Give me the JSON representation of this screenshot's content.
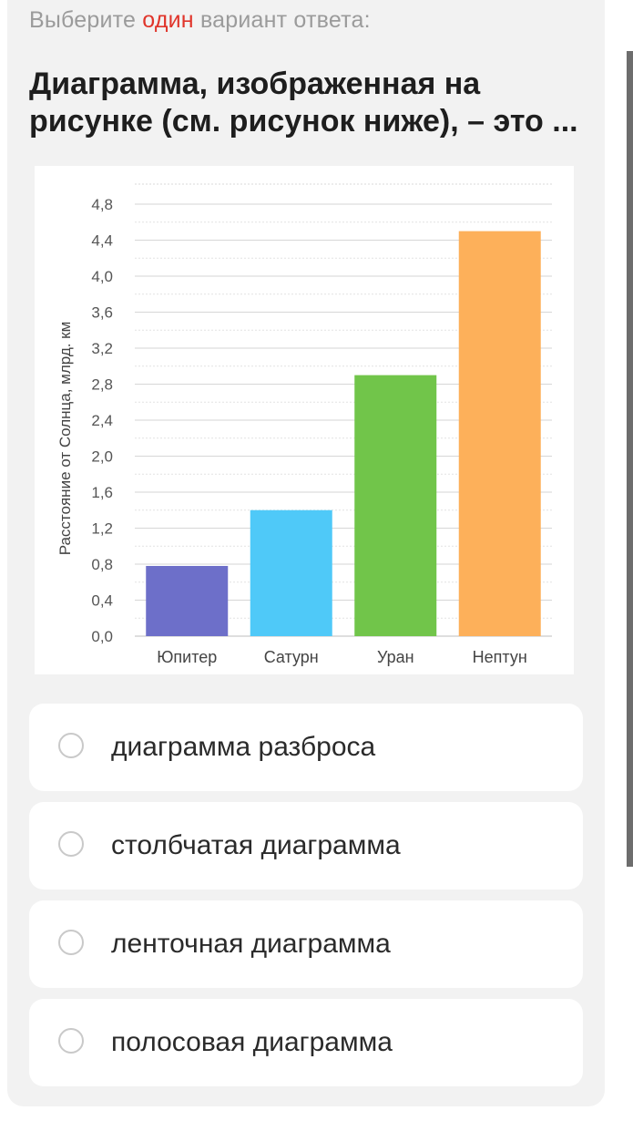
{
  "instruction": {
    "prefix": "Выберите ",
    "accent": "один",
    "suffix": " вариант ответа:"
  },
  "question": "Диаграмма, изображенная на рисунке (см. рисунок ниже), – это ...",
  "colors": {
    "accent": "#e0352b",
    "card_bg": "#f2f2f2"
  },
  "chart_data": {
    "type": "bar",
    "categories": [
      "Юпитер",
      "Сатурн",
      "Уран",
      "Нептун"
    ],
    "values": [
      0.78,
      1.4,
      2.9,
      4.5
    ],
    "colors": [
      "#6d6fc9",
      "#4fc9f8",
      "#71c54a",
      "#fdb05a"
    ],
    "ylabel": "Расстояние от Солнца, млрд. км",
    "ylim": [
      0,
      4.8
    ],
    "yticks": [
      "0,0",
      "0,4",
      "0,8",
      "1,2",
      "1,6",
      "2,0",
      "2,4",
      "2,8",
      "3,2",
      "3,6",
      "4,0",
      "4,4",
      "4,8"
    ],
    "grid": true
  },
  "answers": [
    {
      "label": "диаграмма разброса"
    },
    {
      "label": "столбчатая диаграмма"
    },
    {
      "label": "ленточная диаграмма"
    },
    {
      "label": "полосовая диаграмма"
    }
  ]
}
